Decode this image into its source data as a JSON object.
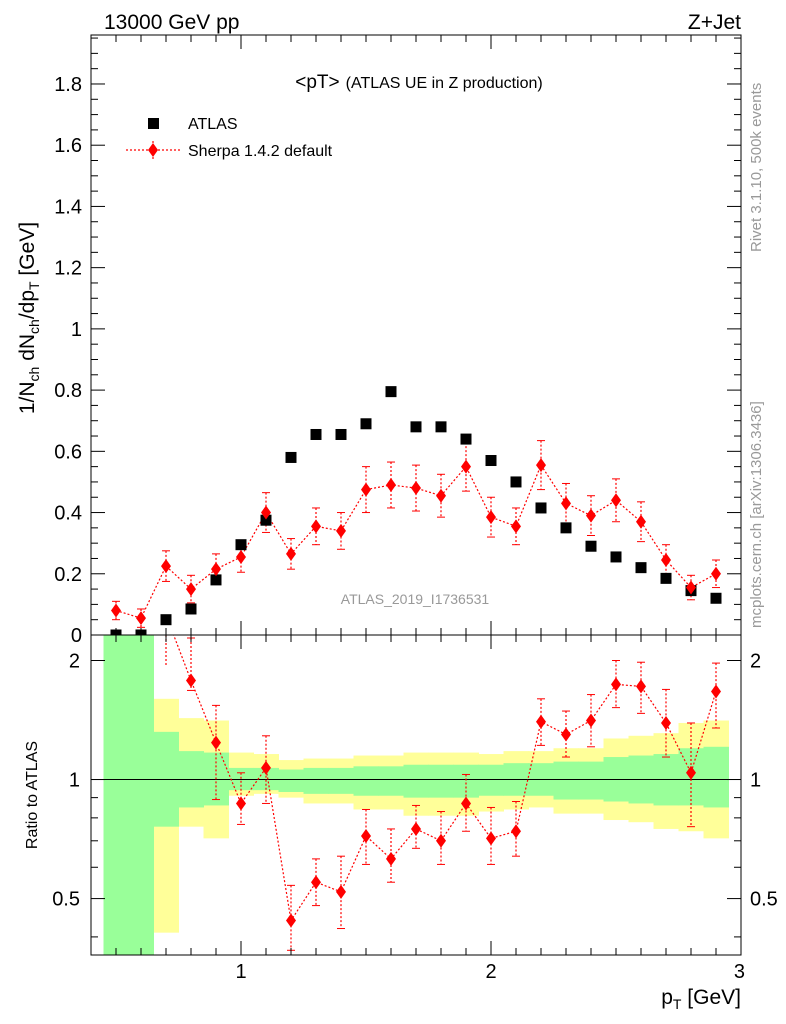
{
  "header": {
    "left": "13000 GeV pp",
    "right": "Z+Jet"
  },
  "side_labels": {
    "rivet": "Rivet 3.1.10,  500k events",
    "mcplots": "mcplots.cern.ch [arXiv:1306.3436]"
  },
  "chart_data": [
    {
      "type": "scatter",
      "title_main": "<pT>",
      "title_sub": "(ATLAS UE in Z production)",
      "watermark": "ATLAS_2019_I1736531",
      "ylabel": "1/N_ch dN_ch/dp_T [GeV]",
      "xlabel": "p_T [GeV]",
      "xlim": [
        0.4,
        3.0
      ],
      "ylim": [
        0,
        1.96
      ],
      "xticks": [
        1,
        2,
        3
      ],
      "yticks": [
        0,
        0.2,
        0.4,
        0.6,
        0.8,
        1,
        1.2,
        1.4,
        1.6,
        1.8
      ],
      "ytick_labels": [
        "0",
        "0.2",
        "0.4",
        "0.6",
        "0.8",
        "1",
        "1.2",
        "1.4",
        "1.6",
        "1.8"
      ],
      "legend": {
        "position": "top-left",
        "entries": [
          "ATLAS",
          "Sherpa 1.4.2 default"
        ]
      },
      "x": [
        0.5,
        0.6,
        0.7,
        0.8,
        0.9,
        1.0,
        1.1,
        1.2,
        1.3,
        1.4,
        1.5,
        1.6,
        1.7,
        1.8,
        1.9,
        2.0,
        2.1,
        2.2,
        2.3,
        2.4,
        2.5,
        2.6,
        2.7,
        2.8,
        2.9
      ],
      "series": [
        {
          "name": "ATLAS",
          "color": "#000000",
          "marker": "square",
          "values": [
            0.0,
            0.0,
            0.05,
            0.085,
            0.18,
            0.295,
            0.375,
            0.58,
            0.655,
            0.655,
            0.69,
            0.795,
            0.68,
            0.68,
            0.64,
            0.57,
            0.5,
            0.415,
            0.35,
            0.29,
            0.255,
            0.22,
            0.185,
            0.145,
            0.12
          ]
        },
        {
          "name": "Sherpa 1.4.2 default",
          "color": "#ff0000",
          "marker": "diamond",
          "line": "dotted",
          "values": [
            0.08,
            0.055,
            0.225,
            0.15,
            0.215,
            0.255,
            0.4,
            0.265,
            0.355,
            0.34,
            0.475,
            0.49,
            0.48,
            0.455,
            0.55,
            0.385,
            0.355,
            0.555,
            0.43,
            0.39,
            0.44,
            0.37,
            0.245,
            0.155,
            0.2
          ],
          "errors": [
            0.03,
            0.03,
            0.05,
            0.045,
            0.05,
            0.05,
            0.065,
            0.05,
            0.06,
            0.06,
            0.075,
            0.075,
            0.075,
            0.07,
            0.08,
            0.065,
            0.06,
            0.08,
            0.065,
            0.065,
            0.07,
            0.065,
            0.05,
            0.04,
            0.045
          ]
        }
      ]
    },
    {
      "type": "scatter",
      "ylabel": "Ratio to ATLAS",
      "xlim": [
        0.4,
        3.0
      ],
      "ylim": [
        0.36,
        2.32
      ],
      "yticks": [
        0.5,
        1,
        2
      ],
      "ytick_labels": [
        "0.5",
        "1",
        "2"
      ],
      "xtick_labels": [
        "1",
        "2",
        "3"
      ],
      "reference_line": 1,
      "bins": [
        0.45,
        0.55,
        0.65,
        0.75,
        0.85,
        0.95,
        1.05,
        1.15,
        1.25,
        1.35,
        1.45,
        1.55,
        1.65,
        1.75,
        1.85,
        1.95,
        2.05,
        2.15,
        2.25,
        2.35,
        2.45,
        2.55,
        2.65,
        2.75,
        2.85,
        2.95
      ],
      "bands": [
        {
          "name": "yellow",
          "color": "#ffff99",
          "low": [
            0.2,
            0.2,
            0.41,
            0.76,
            0.71,
            0.91,
            0.92,
            0.9,
            0.87,
            0.87,
            0.84,
            0.84,
            0.81,
            0.81,
            0.81,
            0.83,
            0.84,
            0.85,
            0.82,
            0.82,
            0.79,
            0.78,
            0.75,
            0.74,
            0.71
          ],
          "high": [
            5.0,
            5.0,
            1.6,
            1.43,
            1.41,
            1.17,
            1.16,
            1.12,
            1.13,
            1.13,
            1.15,
            1.15,
            1.17,
            1.17,
            1.17,
            1.16,
            1.18,
            1.18,
            1.2,
            1.2,
            1.27,
            1.29,
            1.31,
            1.39,
            1.41
          ]
        },
        {
          "name": "green",
          "color": "#99ff99",
          "low": [
            0.2,
            0.2,
            0.76,
            0.85,
            0.86,
            0.94,
            0.94,
            0.93,
            0.92,
            0.92,
            0.91,
            0.91,
            0.9,
            0.9,
            0.9,
            0.91,
            0.91,
            0.91,
            0.89,
            0.89,
            0.88,
            0.87,
            0.86,
            0.86,
            0.85
          ],
          "high": [
            5.0,
            5.0,
            1.32,
            1.18,
            1.17,
            1.07,
            1.07,
            1.06,
            1.07,
            1.07,
            1.08,
            1.08,
            1.09,
            1.09,
            1.09,
            1.09,
            1.1,
            1.1,
            1.11,
            1.11,
            1.14,
            1.15,
            1.16,
            1.2,
            1.21
          ]
        }
      ],
      "series": [
        {
          "name": "Sherpa 1.4.2 default",
          "color": "#ff0000",
          "x": [
            0.8,
            0.9,
            1.0,
            1.1,
            1.2,
            1.3,
            1.4,
            1.5,
            1.6,
            1.7,
            1.8,
            1.9,
            2.0,
            2.1,
            2.2,
            2.3,
            2.4,
            2.5,
            2.6,
            2.7,
            2.8,
            2.9
          ],
          "values": [
            1.78,
            1.24,
            0.87,
            1.07,
            0.44,
            0.55,
            0.52,
            0.72,
            0.63,
            0.75,
            0.7,
            0.87,
            0.71,
            0.74,
            1.4,
            1.3,
            1.41,
            1.74,
            1.72,
            1.39,
            1.04,
            1.67
          ],
          "err_low": [
            0.1,
            0.35,
            0.1,
            0.2,
            0.07,
            0.07,
            0.1,
            0.11,
            0.08,
            0.08,
            0.09,
            0.13,
            0.1,
            0.1,
            0.18,
            0.16,
            0.2,
            0.22,
            0.25,
            0.25,
            0.28,
            0.32
          ],
          "err_high": [
            0.5,
            0.3,
            0.17,
            0.22,
            0.1,
            0.08,
            0.12,
            0.12,
            0.12,
            0.11,
            0.13,
            0.16,
            0.14,
            0.14,
            0.2,
            0.19,
            0.23,
            0.26,
            0.26,
            0.3,
            0.35,
            0.3
          ]
        }
      ],
      "offscale_marker": {
        "x": 0.7,
        "err_top_visible": true
      }
    }
  ]
}
